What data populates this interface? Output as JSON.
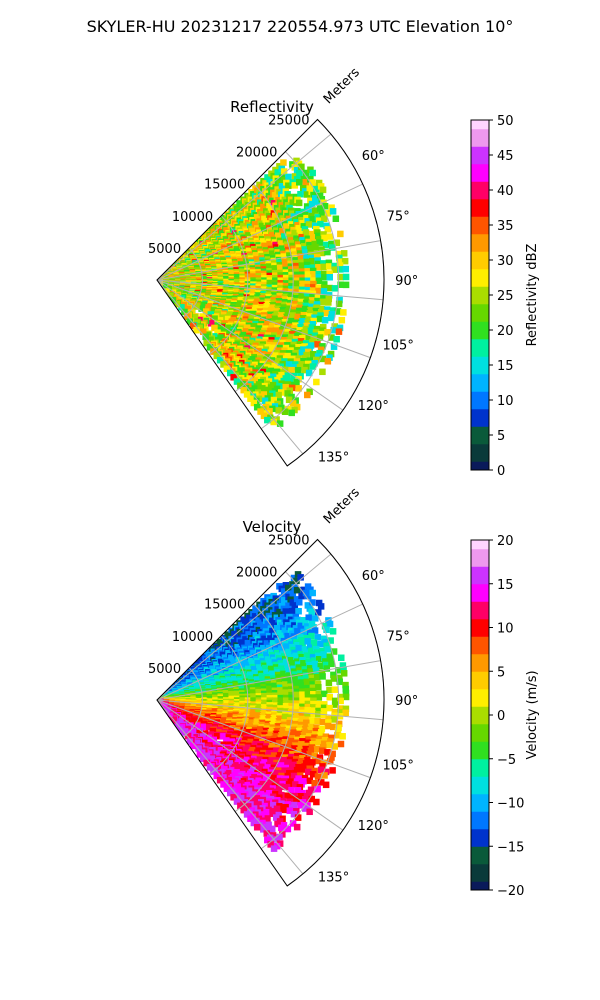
{
  "figure": {
    "title": "SKYLER-HU  20231217  220554.973 UTC Elevation 10°"
  },
  "colors": {
    "reflectivity_stops": [
      "#0a1a5a",
      "#0a3a3a",
      "#0a5a3a",
      "#0033cc",
      "#0077ff",
      "#00b4ff",
      "#00e0e0",
      "#00f0a0",
      "#30e020",
      "#66d800",
      "#aadd00",
      "#ffee00",
      "#ffcc00",
      "#ff9900",
      "#ff5500",
      "#ff0000",
      "#ff0066",
      "#ff00ff",
      "#cc33ff",
      "#ee99ee",
      "#ffd5ff"
    ],
    "velocity_stops": [
      "#0a1a5a",
      "#0a3a3a",
      "#0a5a3a",
      "#0033cc",
      "#0077ff",
      "#00b4ff",
      "#00e0e0",
      "#00f0a0",
      "#30e020",
      "#66d800",
      "#aadd00",
      "#ffee00",
      "#ffcc00",
      "#ff9900",
      "#ff5500",
      "#ff0000",
      "#ff0066",
      "#ff00ff",
      "#cc33ff",
      "#ee99ee",
      "#ffd5ff"
    ],
    "grid": "#b0b0b0"
  },
  "chart_data": [
    {
      "type": "heatmap",
      "projection": "polar-sector",
      "title": "Reflectivity",
      "range_axis_label": "Meters",
      "range_ticks": [
        "5000",
        "10000",
        "15000",
        "20000",
        "25000"
      ],
      "range_values": [
        5000,
        10000,
        15000,
        20000,
        25000
      ],
      "rmax": 25000,
      "azimuth_ticks": [
        "60°",
        "75°",
        "90°",
        "105°",
        "120°",
        "135°"
      ],
      "azimuth_values": [
        60,
        75,
        90,
        105,
        120,
        135
      ],
      "azimuth_range": [
        45,
        145
      ],
      "colorbar": {
        "label": "Reflectivity dBZ",
        "range": [
          0,
          50
        ],
        "ticks": [
          "0",
          "5",
          "10",
          "15",
          "20",
          "25",
          "30",
          "35",
          "40",
          "45",
          "50"
        ]
      },
      "grid": true,
      "echo_extent_m": 20000,
      "typical_value": 25
    },
    {
      "type": "heatmap",
      "projection": "polar-sector",
      "title": "Velocity",
      "range_axis_label": "Meters",
      "range_ticks": [
        "5000",
        "10000",
        "15000",
        "20000",
        "25000"
      ],
      "range_values": [
        5000,
        10000,
        15000,
        20000,
        25000
      ],
      "rmax": 25000,
      "azimuth_ticks": [
        "60°",
        "75°",
        "90°",
        "105°",
        "120°",
        "135°"
      ],
      "azimuth_values": [
        60,
        75,
        90,
        105,
        120,
        135
      ],
      "azimuth_range": [
        45,
        145
      ],
      "colorbar": {
        "label": "Velocity (m/s)",
        "range": [
          -20,
          20
        ],
        "ticks": [
          "−20",
          "−15",
          "−10",
          "−5",
          "0",
          "5",
          "10",
          "15",
          "20"
        ]
      },
      "grid": true,
      "echo_extent_m": 20000,
      "typical_value": 0
    }
  ]
}
